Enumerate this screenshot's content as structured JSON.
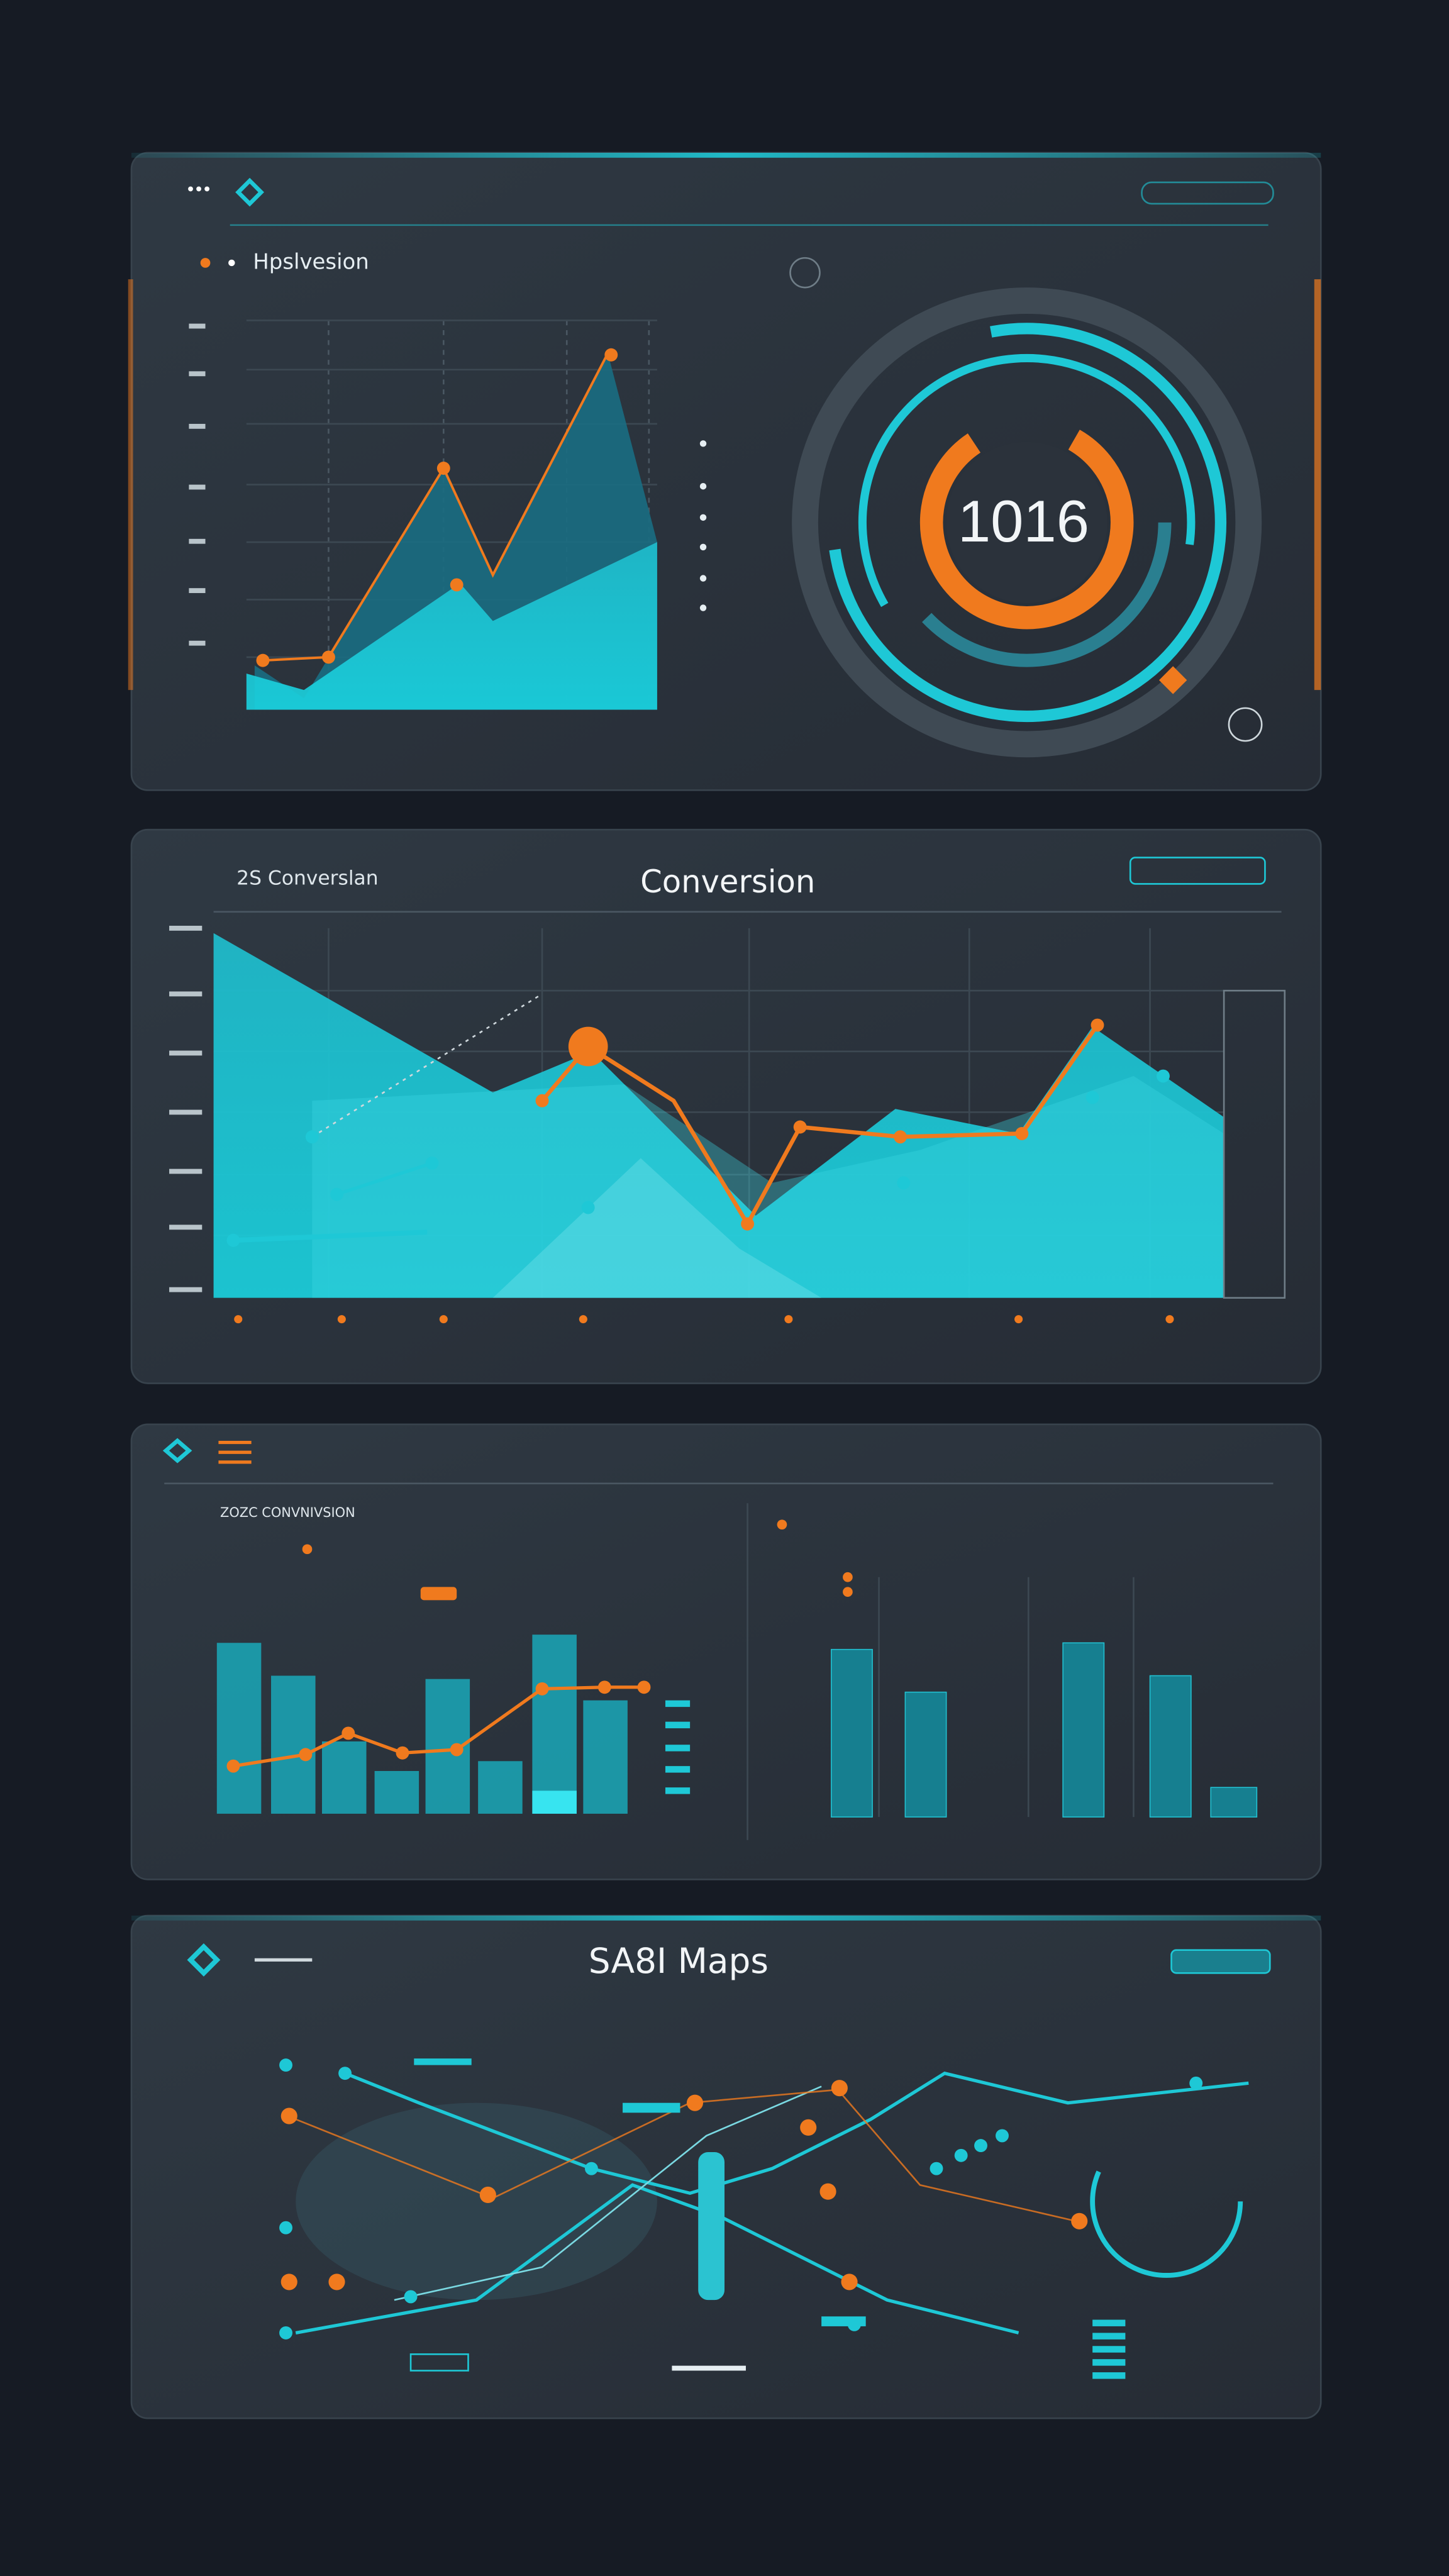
{
  "panels": [
    {
      "title": "Hpslvesion",
      "gauge_value": "1016"
    },
    {
      "label": "2S Converslan",
      "title": "Conversion"
    },
    {
      "label": "ZOZC CONVNIVSION"
    },
    {
      "title": "SA8I Maps"
    }
  ]
}
